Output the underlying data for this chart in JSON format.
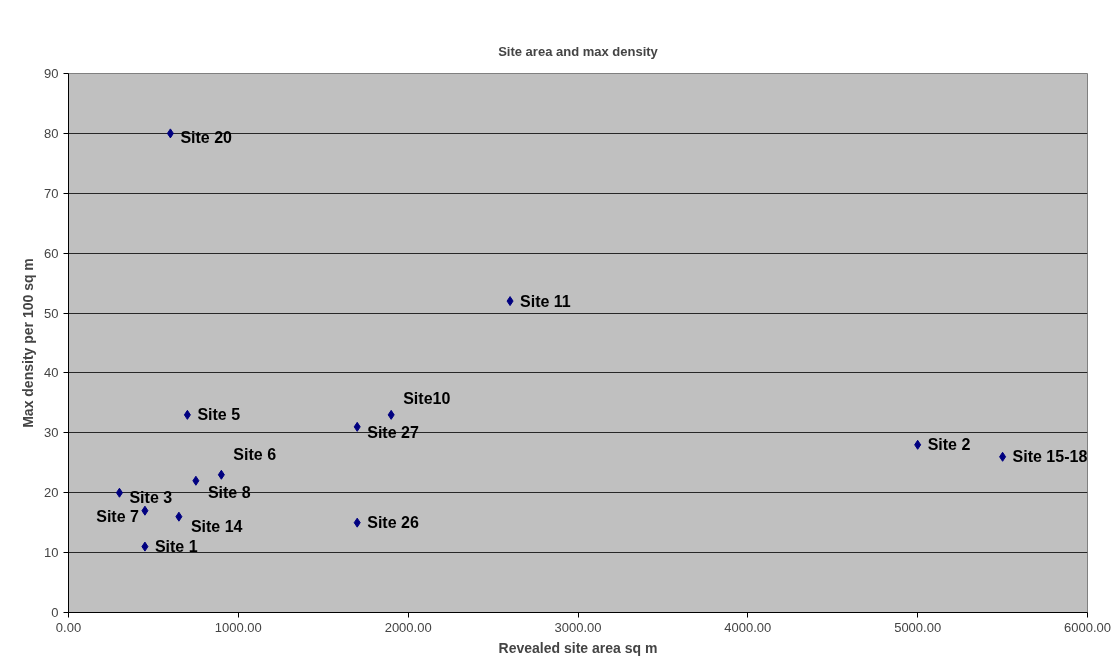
{
  "chart_data": {
    "type": "scatter",
    "title": "Site area and max density",
    "xlabel": "Revealed site area sq m",
    "ylabel": "Max density per 100 sq m",
    "x": [
      600,
      2600,
      700,
      1900,
      1700,
      900,
      750,
      300,
      450,
      650,
      450,
      1700,
      5000,
      5500
    ],
    "series": [
      {
        "color": "#000080",
        "values": [
          80,
          52,
          33,
          33,
          31,
          23,
          22,
          20,
          17,
          16,
          11,
          15,
          28,
          26
        ]
      }
    ],
    "annotations": [
      {
        "text": "Site 20",
        "x": 600,
        "y": 80
      },
      {
        "text": "Site 11",
        "x": 2600,
        "y": 52
      },
      {
        "text": "Site 5",
        "x": 700,
        "y": 33
      },
      {
        "text": "Site10",
        "x": 1900,
        "y": 33
      },
      {
        "text": "Site 27",
        "x": 1700,
        "y": 31
      },
      {
        "text": "Site 6",
        "x": 900,
        "y": 23
      },
      {
        "text": "Site 8",
        "x": 750,
        "y": 22
      },
      {
        "text": "Site 3",
        "x": 300,
        "y": 20
      },
      {
        "text": "Site 7",
        "x": 450,
        "y": 17
      },
      {
        "text": "Site 14",
        "x": 650,
        "y": 16
      },
      {
        "text": "Site 1",
        "x": 450,
        "y": 11
      },
      {
        "text": "Site 26",
        "x": 1700,
        "y": 15
      },
      {
        "text": "Site 2",
        "x": 5000,
        "y": 28
      },
      {
        "text": "Site 15-18",
        "x": 5500,
        "y": 26
      }
    ],
    "xlim": [
      0,
      6000
    ],
    "ylim": [
      0,
      90
    ],
    "xticks": [
      {
        "value": 0,
        "label": "0.00"
      },
      {
        "value": 1000,
        "label": "1000.00"
      },
      {
        "value": 2000,
        "label": "2000.00"
      },
      {
        "value": 3000,
        "label": "3000.00"
      },
      {
        "value": 4000,
        "label": "4000.00"
      },
      {
        "value": 5000,
        "label": "5000.00"
      },
      {
        "value": 6000,
        "label": "6000.00"
      }
    ],
    "yticks": [
      0,
      10,
      20,
      30,
      40,
      50,
      60,
      70,
      80,
      90
    ],
    "grid": "y",
    "marker": "diamond"
  }
}
